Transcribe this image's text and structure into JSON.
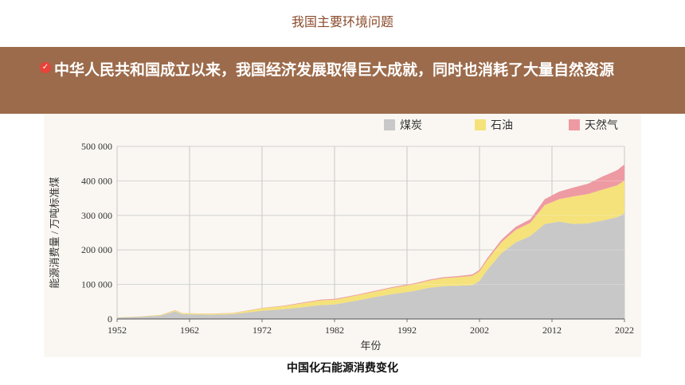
{
  "header": {
    "title": "我国主要环境问题"
  },
  "banner": {
    "text": "中华人民共和国成立以来，我国经济发展取得巨大成就，同时也消耗了大量自然资源",
    "icon": "check-circle-icon"
  },
  "caption": "中国化石能源消费变化",
  "chart_data": {
    "type": "area",
    "stacked": true,
    "xlabel": "年份",
    "ylabel": "能源消费量 / 万吨标准煤",
    "xlim": [
      1952,
      2022
    ],
    "ylim": [
      0,
      500000
    ],
    "x_ticks": [
      "1952",
      "1962",
      "1972",
      "1982",
      "1992",
      "2002",
      "2012",
      "2022"
    ],
    "y_ticks": [
      "0",
      "100 000",
      "200 000",
      "300 000",
      "400 000",
      "500 000"
    ],
    "legend_position": "top-right",
    "x": [
      1952,
      1955,
      1958,
      1960,
      1961,
      1965,
      1968,
      1970,
      1972,
      1975,
      1978,
      1980,
      1982,
      1985,
      1988,
      1990,
      1993,
      1995,
      1997,
      1999,
      2001,
      2002,
      2003,
      2005,
      2007,
      2009,
      2011,
      2013,
      2015,
      2017,
      2019,
      2021,
      2022
    ],
    "series": [
      {
        "name": "煤炭",
        "color": "#c8c8c8",
        "values": [
          4000,
          6000,
          10000,
          22000,
          14000,
          12000,
          14000,
          19000,
          24000,
          28000,
          35000,
          40000,
          42000,
          53000,
          65000,
          72000,
          81000,
          90000,
          95000,
          96000,
          98000,
          110000,
          140000,
          190000,
          222000,
          240000,
          275000,
          282000,
          275000,
          277000,
          285000,
          295000,
          306000
        ]
      },
      {
        "name": "石油",
        "color": "#f5e27a",
        "values": [
          800,
          1000,
          1500,
          3000,
          2500,
          3000,
          3000,
          5000,
          7000,
          9000,
          12000,
          14000,
          14000,
          15000,
          16000,
          18000,
          20000,
          21000,
          23000,
          25000,
          27000,
          28000,
          29000,
          32000,
          36000,
          38000,
          55000,
          65000,
          80000,
          85000,
          90000,
          92000,
          95000
        ]
      },
      {
        "name": "天然气",
        "color": "#ee9aa3",
        "values": [
          100,
          100,
          200,
          500,
          500,
          500,
          500,
          800,
          1000,
          1500,
          2000,
          2000,
          2000,
          2000,
          2500,
          2500,
          2500,
          2800,
          3000,
          3200,
          4000,
          4500,
          5000,
          7000,
          9000,
          11000,
          17000,
          22000,
          26000,
          30000,
          38000,
          44000,
          47000
        ]
      }
    ]
  }
}
